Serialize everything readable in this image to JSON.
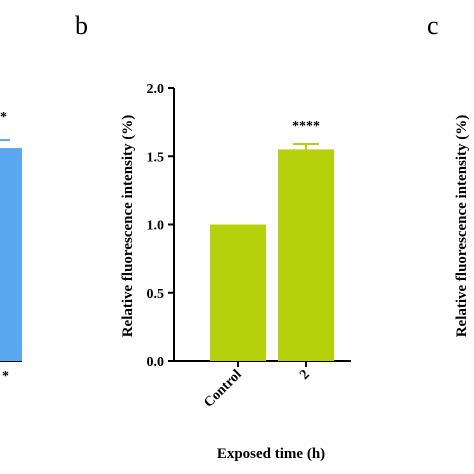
{
  "panels": {
    "left": {
      "letter": "",
      "bar_color": "#5aa9f0",
      "partial_value": 1.56,
      "partial_mark": "*"
    },
    "middle": {
      "letter": "b"
    },
    "right": {
      "letter": "c",
      "ylabel": "Relative fluorescence intensity (%)"
    }
  },
  "chart_data": {
    "type": "bar",
    "title": "",
    "xlabel": "Exposed time (h)",
    "ylabel": "Relative fluorescence intensity (%)",
    "categories": [
      "Control",
      "2"
    ],
    "values": [
      1.0,
      1.55
    ],
    "errors": [
      0,
      0.04
    ],
    "annotations": [
      "",
      "****"
    ],
    "ylim": [
      0,
      2.0
    ],
    "yticks": [
      "0.0",
      "0.5",
      "1.0",
      "1.5",
      "2.0"
    ],
    "bar_color": "#b5d10c",
    "grid": false,
    "legend": "none"
  }
}
